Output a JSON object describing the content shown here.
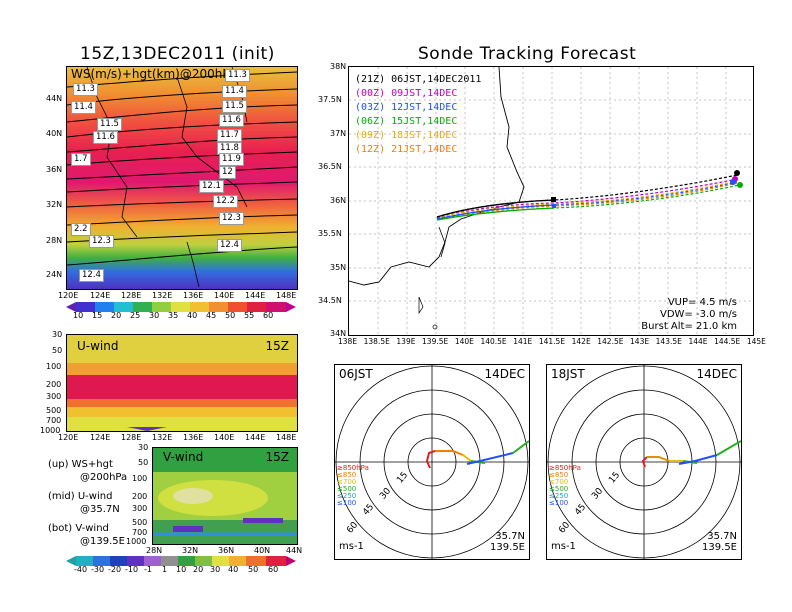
{
  "left_title": "15Z,13DEC2011 (init)",
  "right_title": "Sonde Tracking Forecast",
  "top_map": {
    "label": "WS(m/s)+hgt(km)@200hPa",
    "lat_ticks": [
      "44N",
      "40N",
      "36N",
      "32N",
      "28N",
      "24N"
    ],
    "lon_ticks": [
      "120E",
      "124E",
      "128E",
      "132E",
      "136E",
      "140E",
      "144E",
      "148E"
    ],
    "contour_labels": [
      "11.3",
      "11.4",
      "11.5",
      "11.6",
      "11.7",
      "11.8",
      "11.9",
      "12",
      "12.1",
      "12.2",
      "12.3",
      "12.4",
      "11.4",
      "11.5",
      "11.6",
      "1.7",
      "2.2",
      "12.3",
      "12.4",
      "11.3"
    ],
    "colorbar": [
      "10",
      "15",
      "20",
      "25",
      "30",
      "35",
      "40",
      "45",
      "50",
      "55",
      "60"
    ]
  },
  "uwind": {
    "label": "U-wind",
    "time": "15Z",
    "p_ticks": [
      "30",
      "50",
      "100",
      "200",
      "300",
      "500",
      "700",
      "1000"
    ],
    "lon_ticks": [
      "120E",
      "124E",
      "128E",
      "132E",
      "136E",
      "140E",
      "144E",
      "148E"
    ]
  },
  "vwind": {
    "label": "V-wind",
    "time": "15Z",
    "p_ticks": [
      "30",
      "50",
      "100",
      "200",
      "300",
      "500",
      "700",
      "1000"
    ],
    "lat_ticks": [
      "28N",
      "32N",
      "36N",
      "40N",
      "44N"
    ],
    "colorbar": [
      "-40",
      "-30",
      "-20",
      "-10",
      "-1",
      "1",
      "10",
      "20",
      "30",
      "40",
      "50",
      "60"
    ]
  },
  "notes": {
    "line1": "(up) WS+hgt",
    "line2": "@200hPa",
    "line3": "(mid) U-wind",
    "line4": "@35.7N",
    "line5": "(bot) V-wind",
    "line6": "@139.5E"
  },
  "track": {
    "lat_ticks": [
      "38N",
      "37.5N",
      "37N",
      "36.5N",
      "36N",
      "35.5N",
      "35N",
      "34.5N",
      "34N"
    ],
    "lon_ticks": [
      "138E",
      "138.5E",
      "139E",
      "139.5E",
      "140E",
      "140.5E",
      "141E",
      "141.5E",
      "142E",
      "142.5E",
      "143E",
      "143.5E",
      "144E",
      "144.5E",
      "145E"
    ],
    "legend": [
      {
        "text": "(21Z) 06JST,14DEC2011",
        "color": "#000000"
      },
      {
        "text": "(00Z) 09JST,14DEC",
        "color": "#c000c0"
      },
      {
        "text": "(03Z) 12JST,14DEC",
        "color": "#2050ff"
      },
      {
        "text": "(06Z) 15JST,14DEC",
        "color": "#00b000"
      },
      {
        "text": "(09Z) 18JST,14DEC",
        "color": "#e0b000"
      },
      {
        "text": "(12Z) 21JST,14DEC",
        "color": "#f08000"
      }
    ],
    "vup": "VUP= 4.5 m/s",
    "vdw": "VDW= -3.0 m/s",
    "burst": "Burst Alt= 21.0 km"
  },
  "hodo_left": {
    "time": "06JST",
    "date": "14DEC",
    "rings": [
      "15",
      "30",
      "45",
      "60"
    ],
    "levels": [
      "≥850hPa",
      "≤850",
      "≤700",
      "≤500",
      "≤250",
      "≤100"
    ],
    "loc1": "35.7N",
    "loc2": "139.5E",
    "unit": "ms-1"
  },
  "hodo_right": {
    "time": "18JST",
    "date": "14DEC",
    "rings": [
      "15",
      "30",
      "45",
      "60"
    ],
    "levels": [
      "≥850hPa",
      "≤850",
      "≤700",
      "≤500",
      "≤250",
      "≤100"
    ],
    "loc1": "35.7N",
    "loc2": "139.5E",
    "unit": "ms-1"
  }
}
